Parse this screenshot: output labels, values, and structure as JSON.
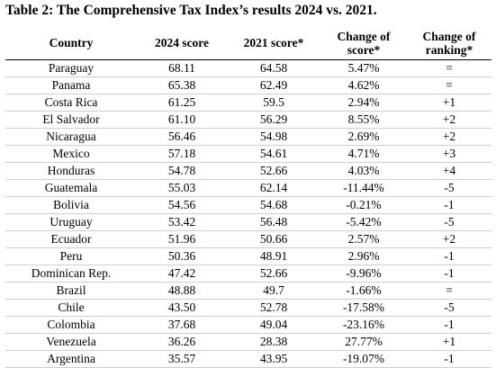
{
  "title": "Table 2: The Comprehensive Tax Index’s results 2024 vs. 2021.",
  "table": {
    "header": [
      "Country",
      "2024 score",
      "2021 score*",
      "Change of score*",
      "Change of ranking*"
    ],
    "rows": [
      [
        "Paraguay",
        "68.11",
        "64.58",
        "5.47%",
        "="
      ],
      [
        "Panama",
        "65.38",
        "62.49",
        "4.62%",
        "="
      ],
      [
        "Costa Rica",
        "61.25",
        "59.5",
        "2.94%",
        "+1"
      ],
      [
        "El Salvador",
        "61.10",
        "56.29",
        "8.55%",
        "+2"
      ],
      [
        "Nicaragua",
        "56.46",
        "54.98",
        "2.69%",
        "+2"
      ],
      [
        "Mexico",
        "57.18",
        "54.61",
        "4.71%",
        "+3"
      ],
      [
        "Honduras",
        "54.78",
        "52.66",
        "4.03%",
        "+4"
      ],
      [
        "Guatemala",
        "55.03",
        "62.14",
        "-11.44%",
        "-5"
      ],
      [
        "Bolivia",
        "54.56",
        "54.68",
        "-0.21%",
        "-1"
      ],
      [
        "Uruguay",
        "53.42",
        "56.48",
        "-5.42%",
        "-5"
      ],
      [
        "Ecuador",
        "51.96",
        "50.66",
        "2.57%",
        "+2"
      ],
      [
        "Peru",
        "50.36",
        "48.91",
        "2.96%",
        "-1"
      ],
      [
        "Dominican Rep.",
        "47.42",
        "52.66",
        "-9.96%",
        "-1"
      ],
      [
        "Brazil",
        "48.88",
        "49.7",
        "-1.66%",
        "="
      ],
      [
        "Chile",
        "43.50",
        "52.78",
        "-17.58%",
        "-5"
      ],
      [
        "Colombia",
        "37.68",
        "49.04",
        "-23.16%",
        "-1"
      ],
      [
        "Venezuela",
        "36.26",
        "28.38",
        "27.77%",
        "+1"
      ],
      [
        "Argentina",
        "35.57",
        "43.95",
        "-19.07%",
        "-1"
      ]
    ]
  }
}
